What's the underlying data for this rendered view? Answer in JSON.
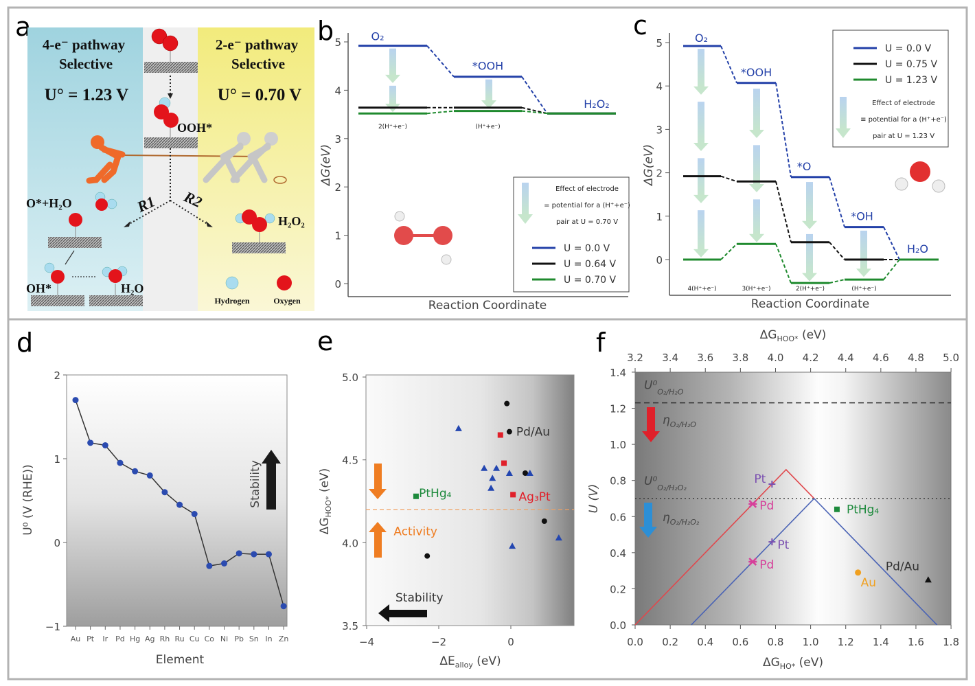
{
  "panel_labels": [
    "a",
    "b",
    "c",
    "d",
    "e",
    "f"
  ],
  "panel_a": {
    "left_title_1": "4-e⁻ pathway",
    "left_title_2": "Selective",
    "left_potential": "U° = 1.23 V",
    "right_title_1": "2-e⁻ pathway",
    "right_title_2": "Selective",
    "right_potential": "U° = 0.70 V",
    "ooh_label": "OOH*",
    "o_h2o_label": "O*+H₂O",
    "r1_label": "R1",
    "r2_label": "R2",
    "h2o2_label": "H₂O₂",
    "oh_label": "OH*",
    "h2o_label": "H₂O",
    "legend_hydrogen": "Hydrogen",
    "legend_oxygen": "Oxygen",
    "colors": {
      "left_bg": "#9fd3df",
      "right_bg": "#f2eb7c",
      "middle_bg": "#efefef",
      "oxygen": "#e3141b",
      "hydrogen": "#a9dcef",
      "puller_left": "#ef6a2a",
      "puller_right": "#c9c9c9"
    }
  },
  "chart_data": [
    {
      "panel": "b",
      "type": "line",
      "subtype": "free-energy-diagram",
      "ylabel": "ΔG(eV)",
      "xlabel": "Reaction Coordinate",
      "ylim": [
        0,
        5
      ],
      "yticks": [
        "0",
        "1",
        "2",
        "3",
        "4",
        "5"
      ],
      "states": [
        "O₂",
        "*OOH",
        "H₂O₂"
      ],
      "step_labels": [
        "2(H⁺+e⁻)",
        "(H⁺+e⁻)"
      ],
      "series": [
        {
          "name": "U = 0.0 V",
          "color": "#2340a8",
          "values": [
            4.92,
            4.28,
            3.52
          ]
        },
        {
          "name": "U = 0.64 V",
          "color": "#111111",
          "values": [
            3.64,
            3.64,
            3.52
          ]
        },
        {
          "name": "U = 0.70 V",
          "color": "#1f8a2e",
          "values": [
            3.52,
            3.57,
            3.52
          ]
        }
      ],
      "legend_note": [
        "Effect of electrode",
        "= potential for a (H⁺+e⁻)",
        "pair at U = 0.70 V"
      ],
      "legend_position": "bottom-right"
    },
    {
      "panel": "c",
      "type": "line",
      "subtype": "free-energy-diagram",
      "ylabel": "ΔG(eV)",
      "xlabel": "Reaction Coordinate",
      "ylim": [
        -0.8,
        5
      ],
      "yticks": [
        "0",
        "1",
        "2",
        "3",
        "4",
        "5"
      ],
      "states": [
        "O₂",
        "*OOH",
        "*O",
        "*OH",
        "H₂O"
      ],
      "step_labels": [
        "4(H⁺+e⁻)",
        "3(H⁺+e⁻)",
        "2(H⁺+e⁻)",
        "(H⁺+e⁻)"
      ],
      "series": [
        {
          "name": "U = 0.0 V",
          "color": "#2340a8",
          "values": [
            4.92,
            4.07,
            1.9,
            0.75,
            0.0
          ]
        },
        {
          "name": "U = 0.75 V",
          "color": "#111111",
          "values": [
            1.92,
            1.8,
            0.4,
            0.0,
            0.0
          ]
        },
        {
          "name": "U = 1.23 V",
          "color": "#1f8a2e",
          "values": [
            0.0,
            0.36,
            -0.54,
            -0.46,
            0.0
          ]
        }
      ],
      "legend_note": [
        "Effect of electrode",
        "≡ potential for a (H⁺+e⁻)",
        "pair at U = 1.23 V"
      ],
      "legend_position": "top-right"
    },
    {
      "panel": "d",
      "type": "line",
      "ylabel": "U⁰ (V (RHE))",
      "xlabel": "Element",
      "ylim": [
        -1,
        2
      ],
      "yticks": [
        "−1",
        "0",
        "1",
        "2"
      ],
      "categories": [
        "Au",
        "Pt",
        "Ir",
        "Pd",
        "Hg",
        "Ag",
        "Rh",
        "Ru",
        "Cu",
        "Co",
        "Ni",
        "Pb",
        "Sn",
        "In",
        "Zn"
      ],
      "values": [
        1.7,
        1.19,
        1.16,
        0.95,
        0.85,
        0.8,
        0.6,
        0.45,
        0.34,
        -0.28,
        -0.25,
        -0.13,
        -0.14,
        -0.14,
        -0.76
      ],
      "marker_color": "#2b4bb0",
      "annotation": "Stability"
    },
    {
      "panel": "e",
      "type": "scatter",
      "xlabel_main": "ΔE",
      "xlabel_sub": "alloy",
      "xlabel_unit": " (eV)",
      "ylabel_main": "ΔG",
      "ylabel_sub": "HOO*",
      "ylabel_unit": " (eV)",
      "xlim": [
        -4,
        1.75
      ],
      "ylim": [
        3.5,
        5.0
      ],
      "xticks": [
        {
          "v": -4,
          "label": "−4"
        },
        {
          "v": -2,
          "label": "−2"
        },
        {
          "v": 0,
          "label": "0"
        }
      ],
      "yticks": [
        {
          "v": 3.5,
          "label": "3.5"
        },
        {
          "v": 4.0,
          "label": "4.0"
        },
        {
          "v": 4.5,
          "label": "4.5"
        },
        {
          "v": 5.0,
          "label": "5.0"
        }
      ],
      "threshold": 4.2,
      "groups": [
        {
          "marker": "circle",
          "color": "#111111",
          "points": [
            [
              -0.11,
              4.84
            ],
            [
              -0.04,
              4.67
            ],
            [
              0.4,
              4.42
            ],
            [
              0.93,
              4.13
            ],
            [
              -2.32,
              3.92
            ]
          ]
        },
        {
          "marker": "square",
          "color": "#e0202a",
          "points": [
            [
              -0.29,
              4.65
            ],
            [
              -0.19,
              4.48
            ],
            [
              0.06,
              4.29
            ]
          ]
        },
        {
          "marker": "square",
          "color": "#1d8a3c",
          "points": [
            [
              -2.63,
              4.28
            ]
          ]
        },
        {
          "marker": "triangle",
          "color": "#2346b0",
          "points": [
            [
              -1.45,
              4.69
            ],
            [
              -0.74,
              4.45
            ],
            [
              -0.4,
              4.45
            ],
            [
              -0.04,
              4.42
            ],
            [
              0.53,
              4.42
            ],
            [
              -0.51,
              4.39
            ],
            [
              -0.55,
              4.33
            ],
            [
              0.04,
              3.98
            ],
            [
              1.33,
              4.03
            ]
          ]
        }
      ],
      "annotations": [
        {
          "text": "Pd/Au",
          "color": "#333333",
          "at": [
            0.15,
            4.67
          ]
        },
        {
          "text": "PtHg₄",
          "color": "#1d8a3c",
          "at": [
            -2.55,
            4.3
          ]
        },
        {
          "text": "Ag₃Pt",
          "color": "#e0202a",
          "at": [
            0.22,
            4.28
          ]
        },
        {
          "text": "Activity",
          "color": "#ef7d22",
          "at": [
            -3.25,
            4.07
          ]
        },
        {
          "text": "Stability",
          "color": "#333333",
          "at": [
            -3.2,
            3.67
          ]
        }
      ]
    },
    {
      "panel": "f",
      "type": "line",
      "xlabel_main": "ΔG",
      "xlabel_sub": "HO*",
      "xlabel_unit": " (eV)",
      "x2label_main": "ΔG",
      "x2label_sub": "HOO*",
      "x2label_unit": " (eV)",
      "ylabel": "U (V)",
      "xlim": [
        0,
        1.8
      ],
      "x2lim": [
        3.2,
        5.0
      ],
      "ylim": [
        0,
        1.4
      ],
      "xticks": [
        "0.0",
        "0.2",
        "0.4",
        "0.6",
        "0.8",
        "1.0",
        "1.2",
        "1.4",
        "1.6",
        "1.8"
      ],
      "x2ticks": [
        "3.2",
        "3.4",
        "3.6",
        "3.8",
        "4.0",
        "4.2",
        "4.4",
        "4.6",
        "4.8",
        "5.0"
      ],
      "yticks": [
        "0.0",
        "0.2",
        "0.4",
        "0.6",
        "0.8",
        "1.0",
        "1.2",
        "1.4"
      ],
      "series": [
        {
          "color": "#e0474c",
          "points": [
            [
              0,
              0
            ],
            [
              0.86,
              0.86
            ],
            [
              1.02,
              0.7
            ]
          ]
        },
        {
          "color": "#4a63b5",
          "points": [
            [
              0.32,
              0
            ],
            [
              1.02,
              0.7
            ],
            [
              1.72,
              0
            ]
          ]
        }
      ],
      "reference_lines": [
        {
          "y": 1.23,
          "style": "dashed",
          "label_main": "U⁰",
          "label_sub": "O₂/H₂O"
        },
        {
          "y": 0.7,
          "style": "dotted",
          "label_main": "U⁰",
          "label_sub": "O₂/H₂O₂"
        }
      ],
      "overpotential_labels": [
        {
          "main": "η",
          "sub": "O₂/H₂O",
          "color": "#e0202a"
        },
        {
          "main": "η",
          "sub": "O₂/H₂O₂",
          "color": "#2c8fd6"
        }
      ],
      "points": [
        {
          "label": "Pt",
          "x": 0.78,
          "y": 0.78,
          "marker": "plus",
          "color": "#7a4fb0"
        },
        {
          "label": "Pd",
          "x": 0.67,
          "y": 0.67,
          "marker": "star",
          "color": "#d6409a"
        },
        {
          "label": "Pt",
          "x": 0.78,
          "y": 0.46,
          "marker": "plus",
          "color": "#7a4fb0"
        },
        {
          "label": "Pd",
          "x": 0.67,
          "y": 0.35,
          "marker": "star",
          "color": "#d6409a"
        },
        {
          "label": "PtHg₄",
          "x": 1.15,
          "y": 0.64,
          "marker": "square",
          "color": "#1d8a3c"
        },
        {
          "label": "Au",
          "x": 1.27,
          "y": 0.29,
          "marker": "circle",
          "color": "#f0a020"
        },
        {
          "label": "Pd/Au",
          "x": 1.67,
          "y": 0.25,
          "marker": "triangle",
          "color": "#111111"
        }
      ]
    }
  ]
}
